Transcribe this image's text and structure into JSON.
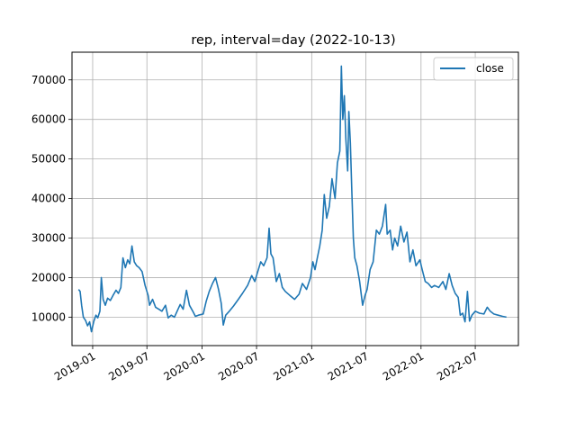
{
  "chart_data": {
    "type": "line",
    "title": "rep, interval=day (2022-10-13)",
    "xlabel": "",
    "ylabel": "",
    "x_ticks": [
      "2019-01",
      "2019-07",
      "2020-01",
      "2020-07",
      "2021-01",
      "2021-07",
      "2022-01",
      "2022-07"
    ],
    "y_ticks": [
      10000,
      20000,
      30000,
      40000,
      50000,
      60000,
      70000
    ],
    "y_tick_labels": [
      "10000",
      "20000",
      "30000",
      "40000",
      "50000",
      "60000",
      "70000"
    ],
    "xlim": [
      "2018-10-24",
      "2022-11-22"
    ],
    "ylim": [
      2800,
      77000
    ],
    "grid": true,
    "legend_position": "top-right",
    "series": [
      {
        "name": "close",
        "color": "#1f77b4",
        "points": [
          [
            "2018-11-15",
            17000
          ],
          [
            "2018-11-20",
            16500
          ],
          [
            "2018-11-25",
            13000
          ],
          [
            "2018-12-01",
            10000
          ],
          [
            "2018-12-08",
            9200
          ],
          [
            "2018-12-15",
            7800
          ],
          [
            "2018-12-22",
            8800
          ],
          [
            "2018-12-28",
            6300
          ],
          [
            "2019-01-05",
            9000
          ],
          [
            "2019-01-12",
            10500
          ],
          [
            "2019-01-18",
            9800
          ],
          [
            "2019-01-25",
            11500
          ],
          [
            "2019-01-30",
            20000
          ],
          [
            "2019-02-05",
            14500
          ],
          [
            "2019-02-12",
            13000
          ],
          [
            "2019-02-20",
            14800
          ],
          [
            "2019-03-01",
            14200
          ],
          [
            "2019-03-10",
            15500
          ],
          [
            "2019-03-20",
            16800
          ],
          [
            "2019-03-28",
            16000
          ],
          [
            "2019-04-05",
            17500
          ],
          [
            "2019-04-12",
            25000
          ],
          [
            "2019-04-20",
            22500
          ],
          [
            "2019-04-28",
            24500
          ],
          [
            "2019-05-05",
            23500
          ],
          [
            "2019-05-12",
            28000
          ],
          [
            "2019-05-20",
            24000
          ],
          [
            "2019-05-28",
            23000
          ],
          [
            "2019-06-05",
            22500
          ],
          [
            "2019-06-15",
            21500
          ],
          [
            "2019-06-25",
            18000
          ],
          [
            "2019-07-05",
            15500
          ],
          [
            "2019-07-10",
            13000
          ],
          [
            "2019-07-20",
            14500
          ],
          [
            "2019-07-30",
            12500
          ],
          [
            "2019-08-10",
            12000
          ],
          [
            "2019-08-20",
            11500
          ],
          [
            "2019-09-01",
            13000
          ],
          [
            "2019-09-10",
            9800
          ],
          [
            "2019-09-20",
            10500
          ],
          [
            "2019-10-01",
            10000
          ],
          [
            "2019-10-10",
            11500
          ],
          [
            "2019-10-20",
            13200
          ],
          [
            "2019-10-30",
            12000
          ],
          [
            "2019-11-10",
            16800
          ],
          [
            "2019-11-20",
            13000
          ],
          [
            "2019-12-01",
            11500
          ],
          [
            "2019-12-10",
            10200
          ],
          [
            "2019-12-20",
            10500
          ],
          [
            "2020-01-05",
            10800
          ],
          [
            "2020-01-15",
            14000
          ],
          [
            "2020-01-25",
            16500
          ],
          [
            "2020-02-05",
            18500
          ],
          [
            "2020-02-15",
            20000
          ],
          [
            "2020-02-25",
            17000
          ],
          [
            "2020-03-05",
            13500
          ],
          [
            "2020-03-12",
            8000
          ],
          [
            "2020-03-20",
            10500
          ],
          [
            "2020-04-01",
            11500
          ],
          [
            "2020-04-15",
            12800
          ],
          [
            "2020-05-01",
            14500
          ],
          [
            "2020-05-15",
            16000
          ],
          [
            "2020-06-01",
            18000
          ],
          [
            "2020-06-15",
            20500
          ],
          [
            "2020-06-25",
            19000
          ],
          [
            "2020-07-05",
            21500
          ],
          [
            "2020-07-15",
            24000
          ],
          [
            "2020-07-25",
            23000
          ],
          [
            "2020-08-05",
            25000
          ],
          [
            "2020-08-12",
            32500
          ],
          [
            "2020-08-18",
            26000
          ],
          [
            "2020-08-25",
            25000
          ],
          [
            "2020-09-05",
            19000
          ],
          [
            "2020-09-15",
            21000
          ],
          [
            "2020-09-25",
            17500
          ],
          [
            "2020-10-05",
            16500
          ],
          [
            "2020-10-20",
            15500
          ],
          [
            "2020-11-05",
            14500
          ],
          [
            "2020-11-20",
            15800
          ],
          [
            "2020-12-01",
            18500
          ],
          [
            "2020-12-15",
            17000
          ],
          [
            "2020-12-28",
            20000
          ],
          [
            "2021-01-05",
            24000
          ],
          [
            "2021-01-12",
            22000
          ],
          [
            "2021-01-20",
            25000
          ],
          [
            "2021-01-28",
            28000
          ],
          [
            "2021-02-05",
            32000
          ],
          [
            "2021-02-12",
            41000
          ],
          [
            "2021-02-20",
            35000
          ],
          [
            "2021-03-01",
            38000
          ],
          [
            "2021-03-10",
            45000
          ],
          [
            "2021-03-20",
            40000
          ],
          [
            "2021-03-28",
            49000
          ],
          [
            "2021-04-05",
            52000
          ],
          [
            "2021-04-10",
            73500
          ],
          [
            "2021-04-15",
            60000
          ],
          [
            "2021-04-20",
            66000
          ],
          [
            "2021-04-25",
            55000
          ],
          [
            "2021-05-01",
            47000
          ],
          [
            "2021-05-05",
            62000
          ],
          [
            "2021-05-10",
            54000
          ],
          [
            "2021-05-15",
            42000
          ],
          [
            "2021-05-20",
            30000
          ],
          [
            "2021-05-25",
            25000
          ],
          [
            "2021-06-01",
            23000
          ],
          [
            "2021-06-10",
            19000
          ],
          [
            "2021-06-20",
            13000
          ],
          [
            "2021-06-28",
            15500
          ],
          [
            "2021-07-05",
            17000
          ],
          [
            "2021-07-15",
            22000
          ],
          [
            "2021-07-25",
            24000
          ],
          [
            "2021-08-05",
            32000
          ],
          [
            "2021-08-15",
            31000
          ],
          [
            "2021-08-25",
            33000
          ],
          [
            "2021-09-05",
            38500
          ],
          [
            "2021-09-10",
            31000
          ],
          [
            "2021-09-20",
            32000
          ],
          [
            "2021-09-28",
            27000
          ],
          [
            "2021-10-05",
            30000
          ],
          [
            "2021-10-15",
            28000
          ],
          [
            "2021-10-25",
            33000
          ],
          [
            "2021-11-05",
            29000
          ],
          [
            "2021-11-15",
            31500
          ],
          [
            "2021-11-25",
            24000
          ],
          [
            "2021-12-05",
            27000
          ],
          [
            "2021-12-15",
            23000
          ],
          [
            "2021-12-28",
            24500
          ],
          [
            "2022-01-05",
            22000
          ],
          [
            "2022-01-15",
            19000
          ],
          [
            "2022-01-25",
            18500
          ],
          [
            "2022-02-05",
            17500
          ],
          [
            "2022-02-15",
            18000
          ],
          [
            "2022-03-01",
            17500
          ],
          [
            "2022-03-15",
            19000
          ],
          [
            "2022-03-25",
            17000
          ],
          [
            "2022-04-05",
            21000
          ],
          [
            "2022-04-15",
            18000
          ],
          [
            "2022-04-25",
            16000
          ],
          [
            "2022-05-05",
            15000
          ],
          [
            "2022-05-12",
            10500
          ],
          [
            "2022-05-20",
            11000
          ],
          [
            "2022-05-28",
            8800
          ],
          [
            "2022-06-05",
            16500
          ],
          [
            "2022-06-12",
            9000
          ],
          [
            "2022-06-20",
            10500
          ],
          [
            "2022-07-01",
            11500
          ],
          [
            "2022-07-15",
            11000
          ],
          [
            "2022-07-30",
            10800
          ],
          [
            "2022-08-10",
            12500
          ],
          [
            "2022-08-20",
            11500
          ],
          [
            "2022-09-01",
            10800
          ],
          [
            "2022-09-15",
            10500
          ],
          [
            "2022-09-30",
            10200
          ],
          [
            "2022-10-13",
            10000
          ]
        ]
      }
    ]
  }
}
